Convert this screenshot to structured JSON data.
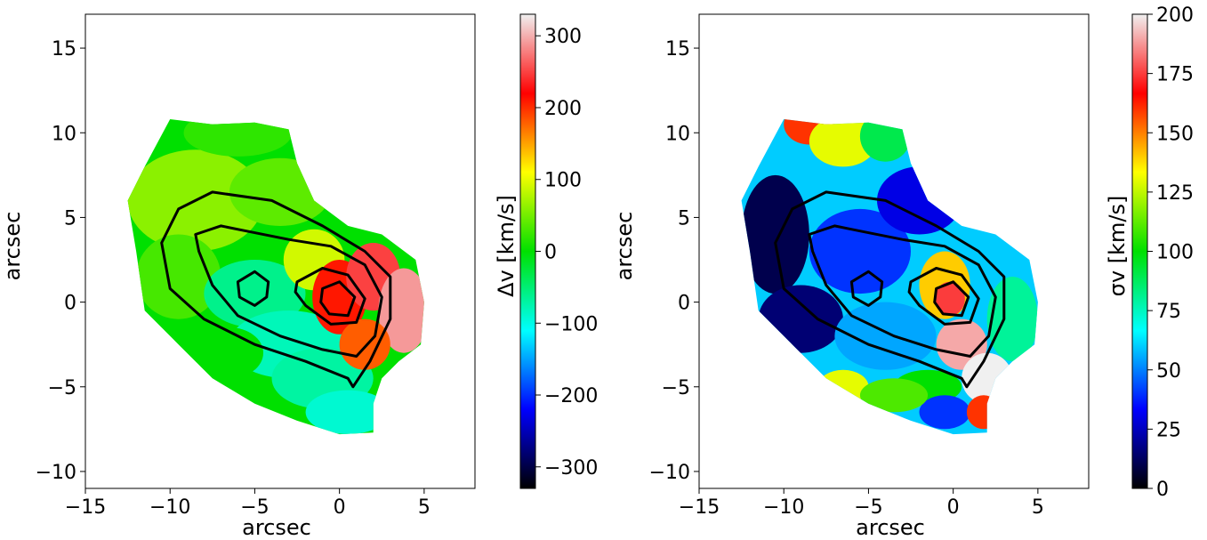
{
  "chart_data": [
    {
      "type": "heatmap",
      "title": "",
      "xlabel": "arcsec",
      "ylabel": "arcsec",
      "xlim": [
        -15,
        8
      ],
      "ylim": [
        -11,
        17
      ],
      "xticks": [
        -15,
        -10,
        -5,
        0,
        5
      ],
      "xtick_labels": [
        "−15",
        "−10",
        "−5",
        "0",
        "5"
      ],
      "yticks": [
        -10,
        -5,
        0,
        5,
        10,
        15
      ],
      "ytick_labels": [
        "−10",
        "−5",
        "0",
        "5",
        "10",
        "15"
      ],
      "colorbar": {
        "label_text": "Δv [km/s]",
        "range": [
          -330,
          330
        ],
        "ticks": [
          -300,
          -200,
          -100,
          0,
          100,
          200,
          300
        ],
        "tick_labels": [
          "−300",
          "−200",
          "−100",
          "0",
          "100",
          "200",
          "300"
        ],
        "colormap": [
          "#000000",
          "#0000ff",
          "#00ffff",
          "#00e000",
          "#ffff00",
          "#ff0000",
          "#f0f0f0"
        ]
      },
      "blobs": [
        {
          "x": -8.5,
          "y": 6.0,
          "rx": 4.0,
          "ry": 3.0,
          "value": 60
        },
        {
          "x": -6.0,
          "y": 10.0,
          "rx": 3.2,
          "ry": 1.4,
          "value": 20
        },
        {
          "x": -3.5,
          "y": 6.5,
          "rx": 3.0,
          "ry": 2.0,
          "value": 40
        },
        {
          "x": -9.5,
          "y": 1.5,
          "rx": 2.5,
          "ry": 2.5,
          "value": 30
        },
        {
          "x": -5.0,
          "y": 0.5,
          "rx": 3.0,
          "ry": 2.0,
          "value": -60
        },
        {
          "x": -3.0,
          "y": -2.5,
          "rx": 3.5,
          "ry": 2.0,
          "value": -80
        },
        {
          "x": -1.0,
          "y": -4.5,
          "rx": 3.0,
          "ry": 1.8,
          "value": -70
        },
        {
          "x": 0.5,
          "y": -6.5,
          "rx": 2.5,
          "ry": 1.3,
          "value": -90
        },
        {
          "x": -6.5,
          "y": -3.0,
          "rx": 2.0,
          "ry": 1.5,
          "value": 0
        },
        {
          "x": -1.5,
          "y": 2.5,
          "rx": 1.8,
          "ry": 1.8,
          "value": 90
        },
        {
          "x": 0.0,
          "y": 0.3,
          "rx": 1.6,
          "ry": 2.2,
          "value": 210
        },
        {
          "x": 2.0,
          "y": 1.5,
          "rx": 1.6,
          "ry": 2.0,
          "value": 250
        },
        {
          "x": 3.8,
          "y": -0.5,
          "rx": 1.5,
          "ry": 2.5,
          "value": 290
        },
        {
          "x": 1.5,
          "y": -2.5,
          "rx": 1.5,
          "ry": 1.5,
          "value": 180
        }
      ]
    },
    {
      "type": "heatmap",
      "title": "",
      "xlabel": "arcsec",
      "ylabel": "arcsec",
      "xlim": [
        -15,
        8
      ],
      "ylim": [
        -11,
        17
      ],
      "xticks": [
        -15,
        -10,
        -5,
        0,
        5
      ],
      "xtick_labels": [
        "−15",
        "−10",
        "−5",
        "0",
        "5"
      ],
      "yticks": [
        -10,
        -5,
        0,
        5,
        10,
        15
      ],
      "ytick_labels": [
        "−10",
        "−5",
        "0",
        "5",
        "10",
        "15"
      ],
      "colorbar": {
        "label_text": "σv [km/s]",
        "range": [
          0,
          200
        ],
        "ticks": [
          0,
          25,
          50,
          75,
          100,
          125,
          150,
          175,
          200
        ],
        "tick_labels": [
          "0",
          "25",
          "50",
          "75",
          "100",
          "125",
          "150",
          "175",
          "200"
        ],
        "colormap": [
          "#000000",
          "#0000ff",
          "#00ffff",
          "#00e000",
          "#ffff00",
          "#ff0000",
          "#f0f0f0"
        ]
      },
      "blobs": [
        {
          "x": -10.5,
          "y": 4.0,
          "rx": 2.0,
          "ry": 3.5,
          "value": 10
        },
        {
          "x": -9.0,
          "y": -1.0,
          "rx": 2.5,
          "ry": 2.0,
          "value": 15
        },
        {
          "x": -8.5,
          "y": 10.5,
          "rx": 1.5,
          "ry": 1.2,
          "value": 160
        },
        {
          "x": -6.5,
          "y": 9.5,
          "rx": 2.0,
          "ry": 1.5,
          "value": 130
        },
        {
          "x": -4.0,
          "y": 9.8,
          "rx": 1.5,
          "ry": 1.5,
          "value": 90
        },
        {
          "x": -5.5,
          "y": 3.0,
          "rx": 3.0,
          "ry": 2.5,
          "value": 40
        },
        {
          "x": -4.0,
          "y": -2.0,
          "rx": 3.0,
          "ry": 2.0,
          "value": 55
        },
        {
          "x": -2.0,
          "y": 6.0,
          "rx": 2.5,
          "ry": 2.0,
          "value": 30
        },
        {
          "x": -0.5,
          "y": 1.0,
          "rx": 1.5,
          "ry": 2.0,
          "value": 140
        },
        {
          "x": -0.2,
          "y": 0.2,
          "rx": 0.9,
          "ry": 1.0,
          "value": 175
        },
        {
          "x": 0.5,
          "y": -2.5,
          "rx": 1.5,
          "ry": 1.5,
          "value": 190
        },
        {
          "x": 2.0,
          "y": -4.5,
          "rx": 1.5,
          "ry": 1.5,
          "value": 200
        },
        {
          "x": -1.5,
          "y": -5.0,
          "rx": 2.0,
          "ry": 1.0,
          "value": 100
        },
        {
          "x": -0.5,
          "y": -6.5,
          "rx": 1.5,
          "ry": 1.0,
          "value": 40
        },
        {
          "x": 1.8,
          "y": -6.5,
          "rx": 1.0,
          "ry": 1.0,
          "value": 160
        },
        {
          "x": 3.5,
          "y": -1.0,
          "rx": 1.5,
          "ry": 2.5,
          "value": 80
        },
        {
          "x": -6.5,
          "y": -5.0,
          "rx": 1.5,
          "ry": 1.0,
          "value": 130
        },
        {
          "x": -3.5,
          "y": -5.5,
          "rx": 2.0,
          "ry": 1.0,
          "value": 110
        }
      ]
    }
  ],
  "contour_levels": [
    [
      [
        -10.5,
        3.5
      ],
      [
        -9.5,
        5.5
      ],
      [
        -7.5,
        6.5
      ],
      [
        -4.0,
        6.0
      ],
      [
        -1.0,
        4.5
      ],
      [
        1.5,
        3.0
      ],
      [
        3.0,
        1.5
      ],
      [
        3.0,
        -1.0
      ],
      [
        1.8,
        -3.5
      ],
      [
        0.8,
        -5.0
      ],
      [
        0.5,
        -4.5
      ],
      [
        -2.0,
        -3.5
      ],
      [
        -5.0,
        -2.5
      ],
      [
        -8.0,
        -1.0
      ],
      [
        -10.0,
        0.8
      ]
    ],
    [
      [
        -8.5,
        4.0
      ],
      [
        -7.0,
        4.5
      ],
      [
        -5.5,
        4.2
      ],
      [
        -3.0,
        3.7
      ],
      [
        -0.5,
        3.3
      ],
      [
        1.5,
        2.2
      ],
      [
        2.5,
        0.3
      ],
      [
        2.1,
        -2.0
      ],
      [
        1.0,
        -3.2
      ],
      [
        -1.0,
        -2.8
      ],
      [
        -3.5,
        -2.0
      ],
      [
        -6.0,
        -0.8
      ],
      [
        -7.5,
        1.0
      ],
      [
        -8.3,
        3.0
      ]
    ],
    [
      [
        -2.5,
        1.2
      ],
      [
        -1.0,
        2.0
      ],
      [
        0.5,
        1.6
      ],
      [
        1.5,
        0.2
      ],
      [
        1.0,
        -1.2
      ],
      [
        -0.5,
        -1.3
      ],
      [
        -2.0,
        -0.2
      ],
      [
        -2.6,
        0.6
      ]
    ],
    [
      [
        -1.0,
        0.8
      ],
      [
        0.0,
        1.2
      ],
      [
        0.9,
        0.3
      ],
      [
        0.5,
        -0.8
      ],
      [
        -0.6,
        -0.7
      ],
      [
        -1.1,
        0.0
      ]
    ],
    [
      [
        -6.0,
        1.2
      ],
      [
        -5.0,
        1.8
      ],
      [
        -4.2,
        1.2
      ],
      [
        -4.3,
        0.3
      ],
      [
        -5.0,
        -0.2
      ],
      [
        -5.9,
        0.3
      ]
    ]
  ]
}
